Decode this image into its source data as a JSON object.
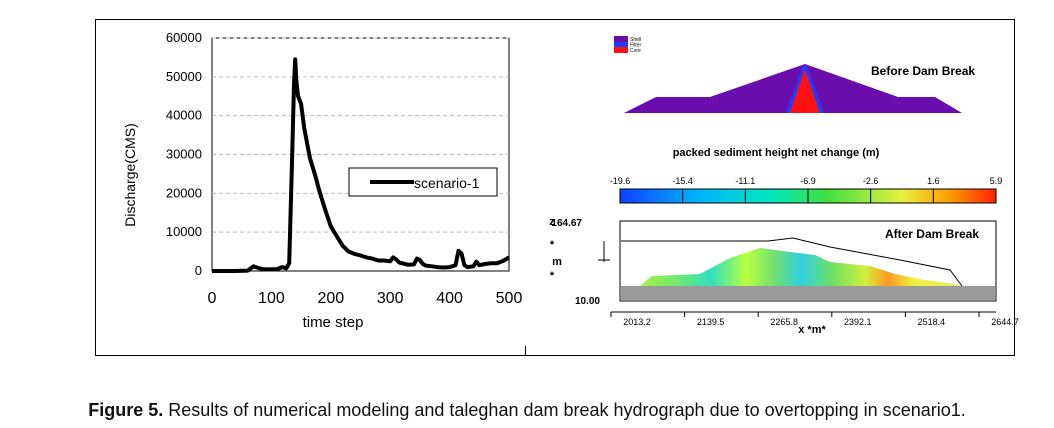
{
  "caption": {
    "label": "Figure 5.",
    "text": " Results of numerical modeling and taleghan dam break hydrograph due to overtopping in scenario1."
  },
  "chart_data": [
    {
      "type": "line",
      "title": "",
      "xlabel": "time step",
      "ylabel": "Discharge(CMS)",
      "xlim": [
        0,
        500
      ],
      "ylim": [
        0,
        60000
      ],
      "xticks": [
        0,
        100,
        200,
        300,
        400,
        500
      ],
      "yticks": [
        0,
        10000,
        20000,
        30000,
        40000,
        50000,
        60000
      ],
      "legend": "scenario-1",
      "series": [
        {
          "name": "scenario-1",
          "x": [
            0,
            20,
            40,
            60,
            70,
            75,
            85,
            95,
            110,
            118,
            125,
            130,
            135,
            138,
            140,
            142,
            145,
            150,
            155,
            160,
            165,
            170,
            175,
            180,
            190,
            200,
            210,
            220,
            230,
            240,
            250,
            260,
            270,
            280,
            290,
            300,
            305,
            310,
            315,
            320,
            330,
            340,
            345,
            350,
            355,
            360,
            370,
            380,
            390,
            400,
            410,
            415,
            420,
            425,
            430,
            440,
            445,
            450,
            460,
            470,
            480,
            490,
            500
          ],
          "values": [
            0,
            0,
            0,
            100,
            1200,
            900,
            500,
            400,
            500,
            1000,
            700,
            2000,
            30000,
            48000,
            54500,
            49000,
            45000,
            43000,
            37000,
            33000,
            29000,
            26500,
            24000,
            21000,
            16000,
            11500,
            9000,
            6500,
            5000,
            4400,
            4000,
            3500,
            3200,
            2700,
            2700,
            2500,
            3500,
            3000,
            2200,
            2000,
            1600,
            1700,
            3200,
            2800,
            1800,
            1400,
            1200,
            1000,
            900,
            1000,
            1500,
            5200,
            4500,
            1500,
            1000,
            1200,
            2400,
            1500,
            1800,
            2000,
            2000,
            2600,
            3500
          ]
        }
      ]
    },
    {
      "type": "diagram",
      "title": "Before Dam Break",
      "legend": [
        "Shell",
        "Filter",
        "Core"
      ],
      "colors": {
        "Shell": "#6a0dad",
        "Filter": "#1e3cff",
        "Core": "#ff1010"
      }
    },
    {
      "type": "heatmap",
      "title": "packed sediment height net change (m)",
      "colorbar_ticks": [
        "-19.6",
        "-15.4",
        "-11.1",
        "-6.9",
        "-2.6",
        "1.6",
        "5.9"
      ],
      "panel_title": "After Dam Break",
      "ylabel": [
        "z",
        "*",
        "m",
        "*"
      ],
      "ylim_labels": [
        "164.67",
        "10.00"
      ],
      "xticks": [
        "2013.2",
        "2139.5",
        "2265.8",
        "2392.1",
        "2518.4",
        "2644.7"
      ],
      "xlabel": "x *m*"
    }
  ]
}
